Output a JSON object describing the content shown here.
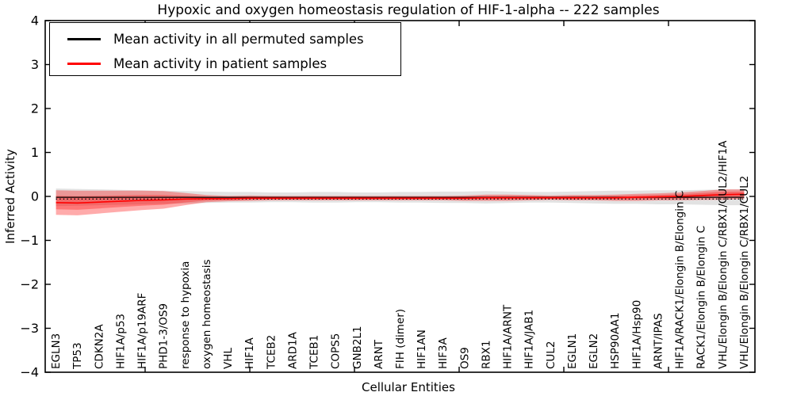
{
  "figure": {
    "title": "Hypoxic and oxygen homeostasis regulation of HIF-1-alpha -- 222 samples",
    "xlabel": "Cellular Entities",
    "ylabel": "Inferred Activity"
  },
  "legend": {
    "items": [
      {
        "label": "Mean activity in all permuted samples",
        "color": "#000000"
      },
      {
        "label": "Mean activity in patient samples",
        "color": "#ff0000"
      }
    ]
  },
  "chart_data": {
    "type": "line",
    "title": "Hypoxic and oxygen homeostasis regulation of HIF-1-alpha -- 222 samples",
    "xlabel": "Cellular Entities",
    "ylabel": "Inferred Activity",
    "ylim": [
      -4,
      4
    ],
    "y_ticks": [
      4,
      3,
      2,
      1,
      0,
      -1,
      -2,
      -3,
      -4
    ],
    "grid": false,
    "legend_position": "upper left",
    "dotted_reference_y": -0.06,
    "categories": [
      "EGLN3",
      "TP53",
      "CDKN2A",
      "HIF1A/p53",
      "HIF1A/p19ARF",
      "PHD1-3/OS9",
      "response to hypoxia",
      "oxygen homeostasis",
      "VHL",
      "HIF1A",
      "TCEB2",
      "ARD1A",
      "TCEB1",
      "COPS5",
      "GNB2L1",
      "ARNT",
      "FIH (dimer)",
      "HIF1AN",
      "HIF3A",
      "OS9",
      "RBX1",
      "HIF1A/ARNT",
      "HIF1A/JAB1",
      "CUL2",
      "EGLN1",
      "EGLN2",
      "HSP90AA1",
      "HIF1A/Hsp90",
      "ARNT/IPAS",
      "HIF1A/RACK1/Elongin B/Elongin C",
      "RACK1/Elongin B/Elongin C",
      "VHL/Elongin B/Elongin C/RBX1/CUL2/HIF1A",
      "VHL/Elongin B/Elongin C/RBX1/CUL2"
    ],
    "series": [
      {
        "name": "Mean activity in all permuted samples",
        "color": "#000000",
        "style": "solid",
        "values": [
          -0.02,
          -0.02,
          -0.02,
          -0.02,
          -0.02,
          -0.02,
          -0.02,
          -0.02,
          -0.02,
          -0.02,
          -0.02,
          -0.02,
          -0.02,
          -0.02,
          -0.02,
          -0.02,
          -0.02,
          -0.02,
          -0.02,
          -0.02,
          -0.02,
          -0.02,
          -0.02,
          -0.02,
          -0.02,
          -0.02,
          -0.02,
          -0.02,
          -0.02,
          -0.02,
          -0.02,
          -0.02,
          -0.02
        ]
      },
      {
        "name": "Permuted samples std band",
        "type": "band",
        "color": "#a0a0a0",
        "half_widths": [
          0.2,
          0.19,
          0.18,
          0.17,
          0.16,
          0.15,
          0.14,
          0.13,
          0.12,
          0.12,
          0.11,
          0.11,
          0.12,
          0.12,
          0.11,
          0.11,
          0.12,
          0.12,
          0.13,
          0.13,
          0.14,
          0.13,
          0.12,
          0.12,
          0.13,
          0.14,
          0.15,
          0.15,
          0.16,
          0.16,
          0.17,
          0.18,
          0.18
        ]
      },
      {
        "name": "Mean activity in patient samples",
        "color": "#ff0000",
        "style": "solid",
        "values": [
          -0.14,
          -0.15,
          -0.13,
          -0.11,
          -0.09,
          -0.08,
          -0.06,
          -0.05,
          -0.05,
          -0.04,
          -0.04,
          -0.04,
          -0.04,
          -0.04,
          -0.04,
          -0.04,
          -0.04,
          -0.04,
          -0.04,
          -0.04,
          -0.03,
          -0.03,
          -0.03,
          -0.03,
          -0.03,
          -0.03,
          -0.03,
          -0.02,
          -0.01,
          0.0,
          0.02,
          0.04,
          0.05
        ]
      },
      {
        "name": "Patient samples std band",
        "type": "band",
        "color": "#ff0000",
        "half_widths": [
          0.28,
          0.28,
          0.26,
          0.24,
          0.22,
          0.2,
          0.14,
          0.08,
          0.06,
          0.06,
          0.05,
          0.05,
          0.05,
          0.05,
          0.05,
          0.05,
          0.05,
          0.05,
          0.05,
          0.06,
          0.07,
          0.07,
          0.06,
          0.05,
          0.06,
          0.06,
          0.07,
          0.08,
          0.08,
          0.09,
          0.1,
          0.12,
          0.11
        ]
      }
    ]
  }
}
